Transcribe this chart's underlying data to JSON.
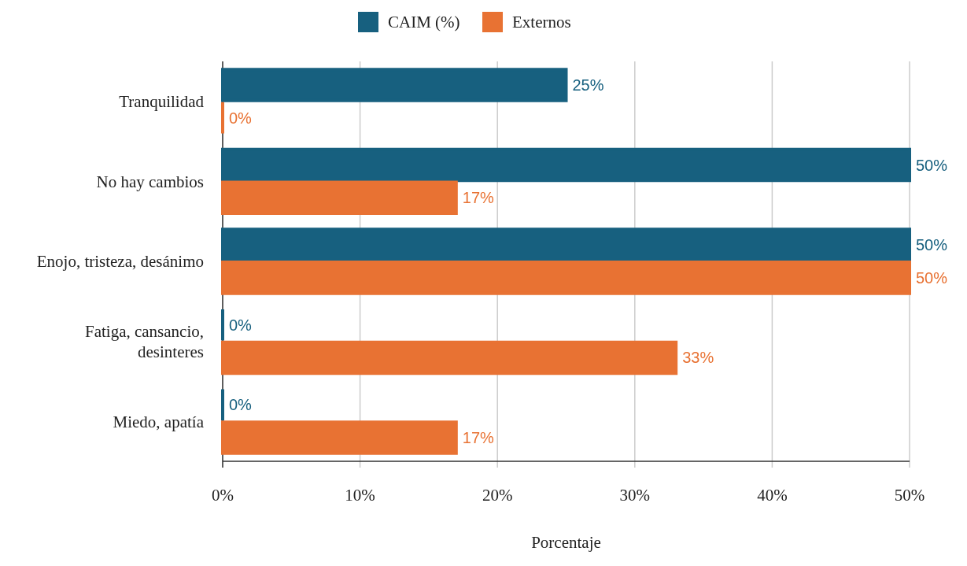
{
  "chart_data": {
    "type": "bar",
    "orientation": "horizontal",
    "xlabel": "Porcentaje",
    "categories": [
      "Tranquilidad",
      "No hay cambios",
      "Enojo, tristeza, desánimo",
      "Fatiga, cansancio, desinteres",
      "Miedo, apatía"
    ],
    "series": [
      {
        "name": "CAIM (%)",
        "color": "#17607f",
        "values": [
          25,
          50,
          50,
          0,
          0
        ],
        "value_labels": [
          "25%",
          "50%",
          "50%",
          "0%",
          "0%"
        ]
      },
      {
        "name": "Externos",
        "color": "#e87233",
        "values": [
          0,
          17,
          50,
          33,
          17
        ],
        "value_labels": [
          "0%",
          "17%",
          "50%",
          "33%",
          "17%"
        ]
      }
    ],
    "xlim": [
      0,
      50
    ],
    "xticks": [
      {
        "value": 0,
        "label": "0%"
      },
      {
        "value": 10,
        "label": "10%"
      },
      {
        "value": 20,
        "label": "20%"
      },
      {
        "value": 30,
        "label": "30%"
      },
      {
        "value": 40,
        "label": "40%"
      },
      {
        "value": 50,
        "label": "50%"
      }
    ],
    "grid": "x",
    "legend": "top"
  }
}
